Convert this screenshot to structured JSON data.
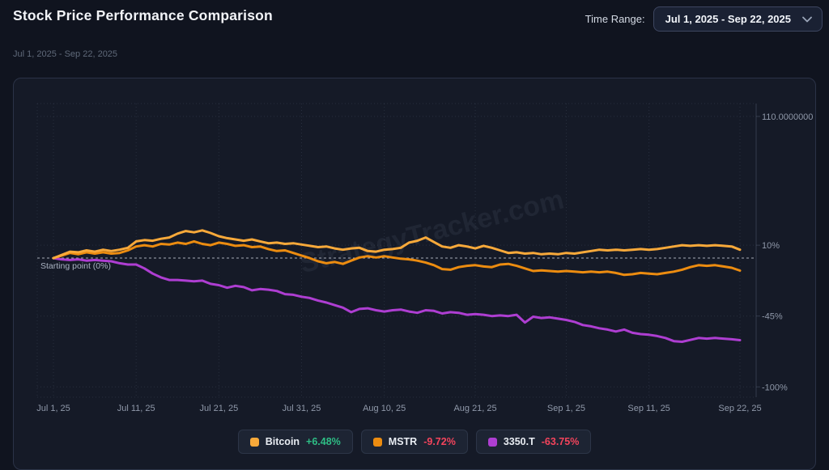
{
  "header": {
    "title": "Stock Price Performance Comparison",
    "subtitle": "Jul 1, 2025 - Sep 22, 2025",
    "time_range_label": "Time Range:",
    "time_range_value": "Jul 1, 2025 - Sep 22, 2025"
  },
  "colors": {
    "page_bg": "#10141f",
    "card_bg": "#151a27",
    "card_border": "#2b3347",
    "bitcoin": "#f8a93a",
    "mstr": "#ec8c10",
    "metaplanet": "#ae3ed2",
    "positive": "#2ebd85",
    "negative": "#f4445c",
    "axis_text": "#8f98a9",
    "grid": "rgba(130,145,170,0.18)",
    "axis_line": "rgba(130,145,170,0.28)",
    "baseline": "#d8dde8",
    "baseline_label": "#aab3c2",
    "watermark": "rgba(190,200,225,0.07)"
  },
  "chart_data": {
    "type": "line",
    "title": "Stock Price Performance Comparison",
    "x_unit": "days since Jul 1, 2025",
    "x_range": [
      0,
      83
    ],
    "ylim": [
      -108,
      120
    ],
    "grid": true,
    "legend_position": "bottom",
    "watermark": "StrategyTracker.com",
    "baseline": {
      "pct": 0,
      "label": "Starting point (0%)"
    },
    "y_ticks": [
      {
        "pct": 110,
        "label": "110.0000000"
      },
      {
        "pct": 10,
        "label": "10%"
      },
      {
        "pct": -45,
        "label": "-45%"
      },
      {
        "pct": -100,
        "label": "-100%"
      }
    ],
    "x_ticks": [
      {
        "day": 0,
        "label": "Jul 1, 25"
      },
      {
        "day": 10,
        "label": "Jul 11, 25"
      },
      {
        "day": 20,
        "label": "Jul 21, 25"
      },
      {
        "day": 30,
        "label": "Jul 31, 25"
      },
      {
        "day": 40,
        "label": "Aug 10, 25"
      },
      {
        "day": 51,
        "label": "Aug 21, 25"
      },
      {
        "day": 62,
        "label": "Sep 1, 25"
      },
      {
        "day": 72,
        "label": "Sep 11, 25"
      },
      {
        "day": 83,
        "label": "Sep 22, 25"
      }
    ],
    "series": [
      {
        "name": "3350.T",
        "color_key": "metaplanet",
        "final_change_pct": -63.75,
        "points": [
          [
            0,
            0
          ],
          [
            1,
            -1
          ],
          [
            2,
            -1.5
          ],
          [
            3,
            -1
          ],
          [
            4,
            -2
          ],
          [
            5,
            -1.5
          ],
          [
            6,
            -2
          ],
          [
            7,
            -2.5
          ],
          [
            8,
            -4
          ],
          [
            9,
            -5
          ],
          [
            10,
            -5
          ],
          [
            11,
            -8
          ],
          [
            12,
            -12
          ],
          [
            13,
            -15
          ],
          [
            14,
            -17
          ],
          [
            15,
            -17
          ],
          [
            16,
            -17.5
          ],
          [
            17,
            -18
          ],
          [
            18,
            -17.5
          ],
          [
            19,
            -20
          ],
          [
            20,
            -21
          ],
          [
            21,
            -23
          ],
          [
            22,
            -21.5
          ],
          [
            23,
            -22.5
          ],
          [
            24,
            -25
          ],
          [
            25,
            -24
          ],
          [
            26,
            -24.5
          ],
          [
            27,
            -25.5
          ],
          [
            28,
            -28
          ],
          [
            29,
            -28.5
          ],
          [
            30,
            -30
          ],
          [
            31,
            -31
          ],
          [
            32,
            -33
          ],
          [
            33,
            -34.5
          ],
          [
            34,
            -36.5
          ],
          [
            35,
            -38.5
          ],
          [
            36,
            -42
          ],
          [
            37,
            -39.5
          ],
          [
            38,
            -39
          ],
          [
            39,
            -40.5
          ],
          [
            40,
            -41.5
          ],
          [
            41,
            -40.5
          ],
          [
            42,
            -40
          ],
          [
            43,
            -41.5
          ],
          [
            44,
            -42.5
          ],
          [
            45,
            -40.5
          ],
          [
            46,
            -41
          ],
          [
            47,
            -43
          ],
          [
            48,
            -42
          ],
          [
            49,
            -42.5
          ],
          [
            50,
            -44
          ],
          [
            51,
            -43.5
          ],
          [
            52,
            -44
          ],
          [
            53,
            -45
          ],
          [
            54,
            -44.5
          ],
          [
            55,
            -45
          ],
          [
            56,
            -44
          ],
          [
            57,
            -50
          ],
          [
            58,
            -45.5
          ],
          [
            59,
            -46.5
          ],
          [
            60,
            -46
          ],
          [
            61,
            -47
          ],
          [
            62,
            -48
          ],
          [
            63,
            -49.5
          ],
          [
            64,
            -52
          ],
          [
            65,
            -53
          ],
          [
            66,
            -54.5
          ],
          [
            67,
            -55.5
          ],
          [
            68,
            -57
          ],
          [
            69,
            -55.5
          ],
          [
            70,
            -58
          ],
          [
            71,
            -59
          ],
          [
            72,
            -59.5
          ],
          [
            73,
            -60.5
          ],
          [
            74,
            -62
          ],
          [
            75,
            -64.5
          ],
          [
            76,
            -65
          ],
          [
            77,
            -63.5
          ],
          [
            78,
            -62
          ],
          [
            79,
            -62.5
          ],
          [
            80,
            -62
          ],
          [
            81,
            -62.5
          ],
          [
            82,
            -63
          ],
          [
            83,
            -63.75
          ]
        ]
      },
      {
        "name": "MSTR",
        "color_key": "mstr",
        "final_change_pct": -9.72,
        "points": [
          [
            0,
            0
          ],
          [
            1,
            2
          ],
          [
            2,
            4
          ],
          [
            3,
            3
          ],
          [
            4,
            4.5
          ],
          [
            5,
            3.5
          ],
          [
            6,
            4.5
          ],
          [
            7,
            3.5
          ],
          [
            8,
            4
          ],
          [
            9,
            6
          ],
          [
            10,
            9
          ],
          [
            11,
            10
          ],
          [
            12,
            9
          ],
          [
            13,
            11
          ],
          [
            14,
            10.5
          ],
          [
            15,
            12
          ],
          [
            16,
            11
          ],
          [
            17,
            13
          ],
          [
            18,
            11
          ],
          [
            19,
            10
          ],
          [
            20,
            12
          ],
          [
            21,
            11
          ],
          [
            22,
            9.5
          ],
          [
            23,
            10
          ],
          [
            24,
            8.5
          ],
          [
            25,
            9
          ],
          [
            26,
            7
          ],
          [
            27,
            5.5
          ],
          [
            28,
            6
          ],
          [
            29,
            4
          ],
          [
            30,
            2
          ],
          [
            31,
            0
          ],
          [
            32,
            -2.5
          ],
          [
            33,
            -4
          ],
          [
            34,
            -3
          ],
          [
            35,
            -4.5
          ],
          [
            36,
            -2
          ],
          [
            37,
            0.5
          ],
          [
            38,
            1.5
          ],
          [
            39,
            0.5
          ],
          [
            40,
            1.5
          ],
          [
            41,
            0.5
          ],
          [
            42,
            -0.5
          ],
          [
            43,
            -1
          ],
          [
            44,
            -2
          ],
          [
            45,
            -3.5
          ],
          [
            46,
            -5.5
          ],
          [
            47,
            -8.5
          ],
          [
            48,
            -9
          ],
          [
            49,
            -7
          ],
          [
            50,
            -6
          ],
          [
            51,
            -5.5
          ],
          [
            52,
            -6.5
          ],
          [
            53,
            -7
          ],
          [
            54,
            -5
          ],
          [
            55,
            -4.5
          ],
          [
            56,
            -6
          ],
          [
            57,
            -8
          ],
          [
            58,
            -10
          ],
          [
            59,
            -9.5
          ],
          [
            60,
            -10
          ],
          [
            61,
            -10.5
          ],
          [
            62,
            -10
          ],
          [
            63,
            -10.5
          ],
          [
            64,
            -11
          ],
          [
            65,
            -10.5
          ],
          [
            66,
            -11
          ],
          [
            67,
            -10.5
          ],
          [
            68,
            -11.5
          ],
          [
            69,
            -13
          ],
          [
            70,
            -12.5
          ],
          [
            71,
            -11.5
          ],
          [
            72,
            -12
          ],
          [
            73,
            -12.5
          ],
          [
            74,
            -11.5
          ],
          [
            75,
            -10.5
          ],
          [
            76,
            -9
          ],
          [
            77,
            -7
          ],
          [
            78,
            -5.5
          ],
          [
            79,
            -6
          ],
          [
            80,
            -5.5
          ],
          [
            81,
            -6.5
          ],
          [
            82,
            -7.5
          ],
          [
            83,
            -9.72
          ]
        ]
      },
      {
        "name": "Bitcoin",
        "color_key": "bitcoin",
        "final_change_pct": 6.48,
        "points": [
          [
            0,
            0
          ],
          [
            1,
            2.5
          ],
          [
            2,
            5
          ],
          [
            3,
            4.5
          ],
          [
            4,
            6
          ],
          [
            5,
            5
          ],
          [
            6,
            6.5
          ],
          [
            7,
            5.5
          ],
          [
            8,
            6.5
          ],
          [
            9,
            8
          ],
          [
            10,
            13
          ],
          [
            11,
            14
          ],
          [
            12,
            13.5
          ],
          [
            13,
            15
          ],
          [
            14,
            16
          ],
          [
            15,
            19
          ],
          [
            16,
            21
          ],
          [
            17,
            20
          ],
          [
            18,
            21.5
          ],
          [
            19,
            19.5
          ],
          [
            20,
            17
          ],
          [
            21,
            15.5
          ],
          [
            22,
            14.5
          ],
          [
            23,
            13.5
          ],
          [
            24,
            14.5
          ],
          [
            25,
            13
          ],
          [
            26,
            11.5
          ],
          [
            27,
            12
          ],
          [
            28,
            11
          ],
          [
            29,
            11.5
          ],
          [
            30,
            10.5
          ],
          [
            31,
            9.5
          ],
          [
            32,
            8.5
          ],
          [
            33,
            9
          ],
          [
            34,
            7.5
          ],
          [
            35,
            6.5
          ],
          [
            36,
            7.5
          ],
          [
            37,
            8
          ],
          [
            38,
            5.5
          ],
          [
            39,
            5
          ],
          [
            40,
            6.5
          ],
          [
            41,
            7
          ],
          [
            42,
            8
          ],
          [
            43,
            12
          ],
          [
            44,
            13.5
          ],
          [
            45,
            16
          ],
          [
            46,
            12.5
          ],
          [
            47,
            9
          ],
          [
            48,
            8
          ],
          [
            49,
            10
          ],
          [
            50,
            9
          ],
          [
            51,
            7.5
          ],
          [
            52,
            9.5
          ],
          [
            53,
            8
          ],
          [
            54,
            6
          ],
          [
            55,
            4
          ],
          [
            56,
            4.5
          ],
          [
            57,
            3.5
          ],
          [
            58,
            4
          ],
          [
            59,
            3
          ],
          [
            60,
            3.5
          ],
          [
            61,
            3
          ],
          [
            62,
            4
          ],
          [
            63,
            3.5
          ],
          [
            64,
            4.5
          ],
          [
            65,
            5.5
          ],
          [
            66,
            6.5
          ],
          [
            67,
            6
          ],
          [
            68,
            6.5
          ],
          [
            69,
            6
          ],
          [
            70,
            6.5
          ],
          [
            71,
            7
          ],
          [
            72,
            6.5
          ],
          [
            73,
            7
          ],
          [
            74,
            8
          ],
          [
            75,
            9
          ],
          [
            76,
            10
          ],
          [
            77,
            9.5
          ],
          [
            78,
            10
          ],
          [
            79,
            9.5
          ],
          [
            80,
            10
          ],
          [
            81,
            9.5
          ],
          [
            82,
            9
          ],
          [
            83,
            6.48
          ]
        ]
      }
    ]
  },
  "legend": {
    "items": [
      {
        "name": "Bitcoin",
        "value": "+6.48%",
        "direction": "positive",
        "color_key": "bitcoin"
      },
      {
        "name": "MSTR",
        "value": "-9.72%",
        "direction": "negative",
        "color_key": "mstr"
      },
      {
        "name": "3350.T",
        "value": "-63.75%",
        "direction": "negative",
        "color_key": "metaplanet"
      }
    ]
  }
}
